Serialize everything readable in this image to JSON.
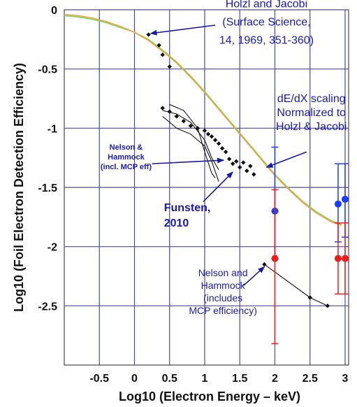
{
  "chart_data": {
    "type": "scatter",
    "title": "",
    "xlabel": "Log10 (Electron Energy – keV)",
    "ylabel": "Log10 (Foil Electron Detection Efficiency)",
    "xlim": [
      -1.0,
      3.05
    ],
    "ylim": [
      -3.0,
      0.0
    ],
    "grid": true,
    "colors": {
      "gridline": "#4a4a90",
      "green_curve": "#7fd856",
      "orange_curve": "#f0a04a",
      "blue": "#1a3cff",
      "red": "#ee1c1c",
      "points": "#111111",
      "annotation": "#1a1ab0"
    },
    "x_ticks": [
      {
        "value": -0.5,
        "label": "-0.5"
      },
      {
        "value": 0,
        "label": "0"
      },
      {
        "value": 0.5,
        "label": "0.5"
      },
      {
        "value": 1,
        "label": "1"
      },
      {
        "value": 1.5,
        "label": "1.5"
      },
      {
        "value": 2,
        "label": "2"
      },
      {
        "value": 2.5,
        "label": "2.5"
      },
      {
        "value": 3,
        "label": "3"
      }
    ],
    "y_ticks": [
      {
        "value": 0,
        "label": "0"
      },
      {
        "value": -0.5,
        "label": "-0.5"
      },
      {
        "value": -1,
        "label": "-1"
      },
      {
        "value": -1.5,
        "label": "-1.5"
      },
      {
        "value": -2,
        "label": "-2"
      },
      {
        "value": -2.5,
        "label": "-2.5"
      }
    ],
    "series": [
      {
        "kind": "curve",
        "color_key": "green_curve",
        "x": [
          -1.0,
          -0.8,
          -0.6,
          -0.4,
          -0.2,
          0.0,
          0.2,
          0.4,
          0.6,
          0.8,
          1.0,
          1.2,
          1.4,
          1.6,
          1.8,
          2.0,
          2.2,
          2.4,
          2.6,
          2.8,
          2.95
        ],
        "y": [
          -0.05,
          -0.06,
          -0.08,
          -0.11,
          -0.15,
          -0.19,
          -0.25,
          -0.34,
          -0.44,
          -0.56,
          -0.69,
          -0.83,
          -0.97,
          -1.11,
          -1.25,
          -1.39,
          -1.51,
          -1.62,
          -1.71,
          -1.78,
          -1.81
        ]
      },
      {
        "kind": "curve",
        "color_key": "orange_curve",
        "x": [
          -1.0,
          -0.8,
          -0.6,
          -0.4,
          -0.2,
          0.0,
          0.2,
          0.4,
          0.6,
          0.8,
          1.0,
          1.2,
          1.4,
          1.6,
          1.8,
          2.0,
          2.2,
          2.4,
          2.6,
          2.8,
          2.95
        ],
        "y": [
          -0.04,
          -0.05,
          -0.07,
          -0.1,
          -0.14,
          -0.19,
          -0.26,
          -0.35,
          -0.45,
          -0.57,
          -0.7,
          -0.84,
          -0.98,
          -1.12,
          -1.26,
          -1.4,
          -1.52,
          -1.63,
          -1.72,
          -1.79,
          -1.82
        ]
      },
      {
        "kind": "markers",
        "color_key": "points",
        "x": [
          0.2,
          0.35,
          0.4,
          0.5
        ],
        "y": [
          -0.21,
          -0.3,
          -0.38,
          -0.48
        ]
      },
      {
        "kind": "markers",
        "color_key": "points",
        "x": [
          0.4,
          0.5,
          0.6,
          0.7,
          0.8,
          0.9,
          1.0,
          1.05,
          1.1,
          1.15,
          1.2,
          1.25,
          1.3,
          1.35,
          1.4,
          1.45,
          1.5,
          1.55,
          1.6,
          1.65,
          1.7
        ],
        "y": [
          -0.83,
          -0.86,
          -0.9,
          -0.94,
          -0.98,
          -1.0,
          -1.02,
          -1.05,
          -1.07,
          -1.1,
          -1.13,
          -1.17,
          -1.2,
          -1.26,
          -1.3,
          -1.28,
          -1.33,
          -1.29,
          -1.36,
          -1.32,
          -1.39
        ]
      },
      {
        "kind": "curve",
        "color_key": "points",
        "x": [
          0.4,
          0.6,
          0.8,
          1.0,
          1.1,
          1.2
        ],
        "y": [
          -0.9,
          -1.0,
          -1.05,
          -1.15,
          -1.28,
          -1.45
        ]
      },
      {
        "kind": "curve",
        "color_key": "points",
        "x": [
          0.4,
          0.6,
          0.8,
          1.0,
          1.1,
          1.2
        ],
        "y": [
          -0.85,
          -0.88,
          -0.95,
          -1.1,
          -1.25,
          -1.35
        ]
      },
      {
        "kind": "curve",
        "color_key": "points",
        "x": [
          0.5,
          0.7,
          0.9,
          1.0,
          1.1,
          1.15
        ],
        "y": [
          -0.8,
          -0.85,
          -1.0,
          -1.2,
          -1.38,
          -1.42
        ]
      },
      {
        "kind": "line-markers",
        "color_key": "points",
        "x": [
          1.85,
          2.5,
          2.75
        ],
        "y": [
          -2.15,
          -2.43,
          -2.5
        ]
      },
      {
        "kind": "errorbars",
        "color_key": "blue",
        "points": [
          {
            "x": 2.0,
            "y": -1.7,
            "low": -2.1,
            "high": -1.16
          },
          {
            "x": 2.9,
            "y": -1.64,
            "low": -1.96,
            "high": -1.3
          },
          {
            "x": 3.0,
            "y": -1.6,
            "low": -1.92,
            "high": -1.3
          }
        ]
      },
      {
        "kind": "errorbars",
        "color_key": "red",
        "points": [
          {
            "x": 2.0,
            "y": -2.1,
            "low": -2.82,
            "high": -1.52
          },
          {
            "x": 2.9,
            "y": -2.1,
            "low": -2.4,
            "high": -1.8
          },
          {
            "x": 3.0,
            "y": -2.1,
            "low": -2.4,
            "high": -1.8
          }
        ]
      }
    ],
    "annotations": [
      {
        "lines": [
          "Holzl and Jacobi",
          "(Surface Science,",
          "14, 1969, 351-360)"
        ],
        "style": "large",
        "anchor": "middle",
        "tx": 1.88,
        "ty": 0.02,
        "line_spacing": 26,
        "arrow_from": [
          1.15,
          -0.13
        ],
        "arrow_to": [
          0.23,
          -0.2
        ]
      },
      {
        "lines": [
          "dE/dX scaling",
          "Normalized to",
          "Holzl & Jacobi"
        ],
        "style": "large",
        "anchor": "middle",
        "tx": 2.52,
        "ty": -0.78,
        "line_spacing": 20,
        "arrow_from": [
          2.45,
          -1.2
        ],
        "arrow_to": [
          1.88,
          -1.33
        ]
      },
      {
        "lines": [
          "Nelson &",
          "Hammock",
          "(incl. MCP eff)"
        ],
        "style": "small",
        "anchor": "middle",
        "tx": -0.12,
        "ty": -1.18,
        "line_spacing": 14,
        "arrow_from": [
          0.25,
          -1.3
        ],
        "arrow_to": [
          1.27,
          -1.27
        ]
      },
      {
        "lines": [
          "Funsten,",
          "2010"
        ],
        "style": "bold",
        "anchor": "start",
        "tx": 0.42,
        "ty": -1.7,
        "line_spacing": 22,
        "arrow_from": [
          0.98,
          -1.62
        ],
        "arrow_to": [
          1.4,
          -1.37
        ]
      },
      {
        "lines": [
          "Nelson and",
          "Hammock",
          "(includes",
          "MCP efficiency)"
        ],
        "style": "med",
        "anchor": "middle",
        "tx": 1.26,
        "ty": -2.25,
        "line_spacing": 18,
        "arrow_from": [
          1.55,
          -2.33
        ],
        "arrow_to": [
          1.85,
          -2.17
        ]
      }
    ]
  }
}
